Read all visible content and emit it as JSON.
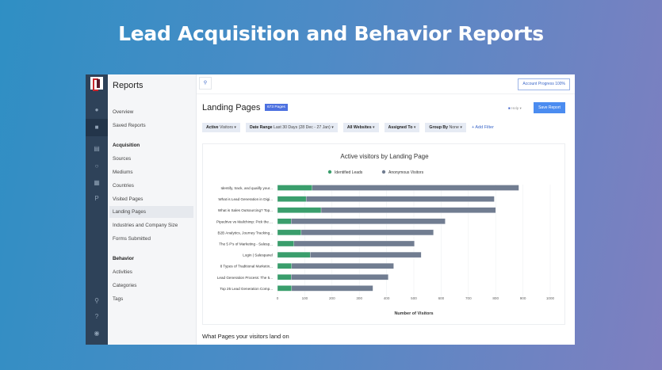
{
  "hero_title": "Lead Acquisition and Behavior Reports",
  "sidebar": {
    "title": "Reports",
    "items": [
      {
        "label": "Overview",
        "type": "item"
      },
      {
        "label": "Saved Reports",
        "type": "item"
      },
      {
        "label": "Acquisition",
        "type": "header"
      },
      {
        "label": "Sources",
        "type": "item"
      },
      {
        "label": "Mediums",
        "type": "item"
      },
      {
        "label": "Countries",
        "type": "item"
      },
      {
        "label": "Visited Pages",
        "type": "item"
      },
      {
        "label": "Landing Pages",
        "type": "item",
        "active": true
      },
      {
        "label": "Industries and Company Size",
        "type": "item"
      },
      {
        "label": "Forms Submitted",
        "type": "item"
      },
      {
        "label": "Behavior",
        "type": "header"
      },
      {
        "label": "Activities",
        "type": "item"
      },
      {
        "label": "Categories",
        "type": "item"
      },
      {
        "label": "Tags",
        "type": "item"
      }
    ]
  },
  "rail_icons": [
    "users-icon",
    "folder-icon",
    "table-icon",
    "clock-icon",
    "grid-icon",
    "p-icon",
    "search-icon",
    "help-icon",
    "user-icon"
  ],
  "topbar": {
    "account_progress": "Account Progress  100%"
  },
  "header": {
    "title": "Landing Pages",
    "badge": "673 Pages",
    "help": "Help",
    "save": "Save Report"
  },
  "filters": [
    {
      "bold": "Active",
      "rest": " Visitors"
    },
    {
      "bold": "Date Range",
      "rest": " Last 30 Days (28 Dec - 27 Jan)"
    },
    {
      "bold": "All Websites",
      "rest": ""
    },
    {
      "bold": "Assigned To",
      "rest": ""
    },
    {
      "bold": "Group By",
      "rest": " None"
    }
  ],
  "add_filter": "+ Add Filter",
  "footer_heading": "What Pages your visitors land on",
  "colors": {
    "identified": "#3a9e6c",
    "anonymous": "#717d91",
    "accent": "#4b8cf0"
  },
  "chart_data": {
    "type": "bar",
    "orientation": "horizontal",
    "stacked": true,
    "title": "Active visitors by Landing Page",
    "xlabel": "Number of Visitors",
    "xlim": [
      0,
      1000
    ],
    "xticks": [
      0,
      100,
      200,
      300,
      400,
      500,
      600,
      700,
      800,
      900,
      1000
    ],
    "grid": true,
    "legend": "top",
    "categories": [
      "Identify, track, and qualify your...",
      "What is Lead Generation in Digi...",
      "What is Sales Outsourcing? Top...",
      "Pipedrive vs Mailchimp: Pick the ...",
      "B2B Analytics, Journey Tracking...",
      "The 5 P's of Marketing - Salesp...",
      "Login | Salespanel",
      "8 Types of Traditional Marketin...",
      "Lead Generation Process: The 5...",
      "Top 25 Lead Generation Comp..."
    ],
    "series": [
      {
        "name": "Identified Leads",
        "values": [
          127,
          105,
          160,
          50,
          87,
          60,
          120,
          52,
          50,
          52
        ]
      },
      {
        "name": "Anonymous Visitors",
        "values": [
          758,
          690,
          640,
          565,
          485,
          442,
          407,
          374,
          356,
          298
        ]
      }
    ]
  }
}
